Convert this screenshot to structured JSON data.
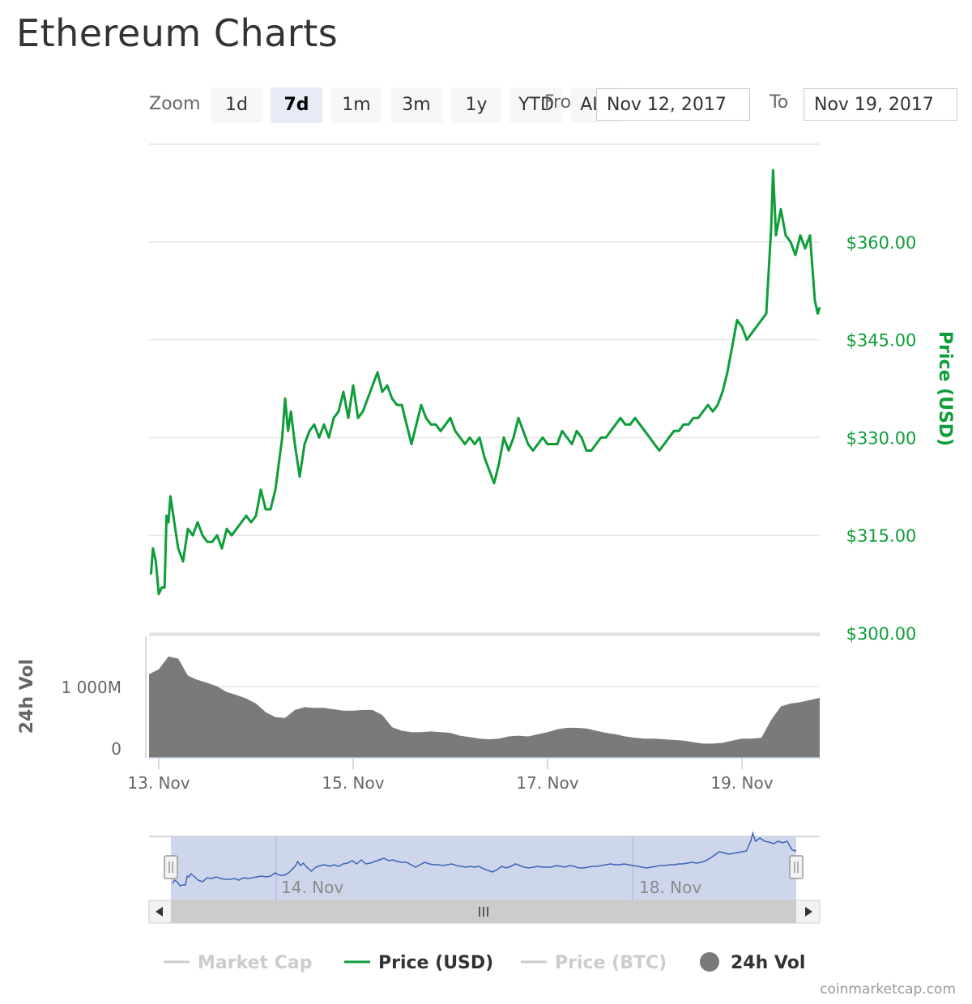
{
  "page": {
    "title": "Ethereum Charts"
  },
  "toolbar": {
    "zoom_label": "Zoom",
    "zoom_buttons": [
      {
        "label": "1d"
      },
      {
        "label": "7d",
        "active": true
      },
      {
        "label": "1m"
      },
      {
        "label": "3m"
      },
      {
        "label": "1y"
      },
      {
        "label": "YTD"
      },
      {
        "label": "ALL"
      }
    ],
    "from_label": "From",
    "to_label": "To",
    "from_value": "Nov 12, 2017",
    "to_value": "Nov 19, 2017"
  },
  "chart_data": {
    "type": "line",
    "title": "Ethereum Charts",
    "x": [
      "Nov 12, 2017",
      "Nov 19, 2017"
    ],
    "price_axis": {
      "label": "Price (USD)",
      "ylim": [
        300,
        375
      ],
      "ticks": [
        300,
        315,
        330,
        345,
        360
      ],
      "tick_labels": [
        "$300.00",
        "$315.00",
        "$330.00",
        "$345.00",
        "$360.00"
      ]
    },
    "volume_axis": {
      "label": "24h Vol",
      "ticks": [
        0,
        1000
      ],
      "tick_labels": [
        "0",
        "1 000M"
      ]
    },
    "x_axis": {
      "range_days": [
        12.9,
        19.8
      ],
      "ticks": [
        13,
        15,
        17,
        19
      ],
      "tick_labels": [
        "13. Nov",
        "15. Nov",
        "17. Nov",
        "19. Nov"
      ]
    },
    "navigator": {
      "tick_labels": [
        "14. Nov",
        "18. Nov"
      ]
    },
    "series": [
      {
        "name": "Price (USD)",
        "type": "line",
        "color": "#0f9d3a",
        "points": [
          [
            12.92,
            309
          ],
          [
            12.94,
            313
          ],
          [
            12.97,
            311
          ],
          [
            13.0,
            306
          ],
          [
            13.03,
            307
          ],
          [
            13.06,
            307
          ],
          [
            13.08,
            318
          ],
          [
            13.1,
            317
          ],
          [
            13.12,
            321
          ],
          [
            13.15,
            318
          ],
          [
            13.2,
            313
          ],
          [
            13.25,
            311
          ],
          [
            13.3,
            316
          ],
          [
            13.35,
            315
          ],
          [
            13.4,
            317
          ],
          [
            13.45,
            315
          ],
          [
            13.5,
            314
          ],
          [
            13.55,
            314
          ],
          [
            13.6,
            315
          ],
          [
            13.65,
            313
          ],
          [
            13.7,
            316
          ],
          [
            13.75,
            315
          ],
          [
            13.8,
            316
          ],
          [
            13.85,
            317
          ],
          [
            13.9,
            318
          ],
          [
            13.95,
            317
          ],
          [
            14.0,
            318
          ],
          [
            14.05,
            322
          ],
          [
            14.1,
            319
          ],
          [
            14.15,
            319
          ],
          [
            14.2,
            322
          ],
          [
            14.27,
            330
          ],
          [
            14.3,
            336
          ],
          [
            14.33,
            331
          ],
          [
            14.36,
            334
          ],
          [
            14.4,
            329
          ],
          [
            14.45,
            324
          ],
          [
            14.5,
            329
          ],
          [
            14.55,
            331
          ],
          [
            14.6,
            332
          ],
          [
            14.65,
            330
          ],
          [
            14.7,
            332
          ],
          [
            14.75,
            330
          ],
          [
            14.8,
            333
          ],
          [
            14.85,
            334
          ],
          [
            14.9,
            337
          ],
          [
            14.95,
            333
          ],
          [
            15.0,
            338
          ],
          [
            15.05,
            333
          ],
          [
            15.1,
            334
          ],
          [
            15.15,
            336
          ],
          [
            15.2,
            338
          ],
          [
            15.25,
            340
          ],
          [
            15.3,
            337
          ],
          [
            15.35,
            338
          ],
          [
            15.4,
            336
          ],
          [
            15.45,
            335
          ],
          [
            15.5,
            335
          ],
          [
            15.55,
            332
          ],
          [
            15.6,
            329
          ],
          [
            15.65,
            332
          ],
          [
            15.7,
            335
          ],
          [
            15.75,
            333
          ],
          [
            15.8,
            332
          ],
          [
            15.85,
            332
          ],
          [
            15.9,
            331
          ],
          [
            15.95,
            332
          ],
          [
            16.0,
            333
          ],
          [
            16.05,
            331
          ],
          [
            16.1,
            330
          ],
          [
            16.15,
            329
          ],
          [
            16.2,
            330
          ],
          [
            16.25,
            329
          ],
          [
            16.3,
            330
          ],
          [
            16.35,
            327
          ],
          [
            16.4,
            325
          ],
          [
            16.45,
            323
          ],
          [
            16.5,
            326
          ],
          [
            16.55,
            330
          ],
          [
            16.6,
            328
          ],
          [
            16.65,
            330
          ],
          [
            16.7,
            333
          ],
          [
            16.75,
            331
          ],
          [
            16.8,
            329
          ],
          [
            16.85,
            328
          ],
          [
            16.9,
            329
          ],
          [
            16.95,
            330
          ],
          [
            17.0,
            329
          ],
          [
            17.05,
            329
          ],
          [
            17.1,
            329
          ],
          [
            17.15,
            331
          ],
          [
            17.2,
            330
          ],
          [
            17.25,
            329
          ],
          [
            17.3,
            331
          ],
          [
            17.35,
            330
          ],
          [
            17.4,
            328
          ],
          [
            17.45,
            328
          ],
          [
            17.5,
            329
          ],
          [
            17.55,
            330
          ],
          [
            17.6,
            330
          ],
          [
            17.65,
            331
          ],
          [
            17.7,
            332
          ],
          [
            17.75,
            333
          ],
          [
            17.8,
            332
          ],
          [
            17.85,
            332
          ],
          [
            17.9,
            333
          ],
          [
            17.95,
            332
          ],
          [
            18.0,
            331
          ],
          [
            18.05,
            330
          ],
          [
            18.1,
            329
          ],
          [
            18.15,
            328
          ],
          [
            18.2,
            329
          ],
          [
            18.25,
            330
          ],
          [
            18.3,
            331
          ],
          [
            18.35,
            331
          ],
          [
            18.4,
            332
          ],
          [
            18.45,
            332
          ],
          [
            18.5,
            333
          ],
          [
            18.55,
            333
          ],
          [
            18.6,
            334
          ],
          [
            18.65,
            335
          ],
          [
            18.7,
            334
          ],
          [
            18.75,
            335
          ],
          [
            18.8,
            337
          ],
          [
            18.85,
            340
          ],
          [
            18.9,
            344
          ],
          [
            18.95,
            348
          ],
          [
            19.0,
            347
          ],
          [
            19.05,
            345
          ],
          [
            19.1,
            346
          ],
          [
            19.15,
            347
          ],
          [
            19.2,
            348
          ],
          [
            19.25,
            349
          ],
          [
            19.3,
            362
          ],
          [
            19.32,
            371
          ],
          [
            19.35,
            361
          ],
          [
            19.4,
            365
          ],
          [
            19.45,
            361
          ],
          [
            19.5,
            360
          ],
          [
            19.55,
            358
          ],
          [
            19.6,
            361
          ],
          [
            19.65,
            359
          ],
          [
            19.7,
            361
          ],
          [
            19.75,
            351
          ],
          [
            19.78,
            349
          ],
          [
            19.8,
            350
          ]
        ]
      },
      {
        "name": "24h Vol",
        "type": "area",
        "color": "#7a7a7a",
        "points": [
          [
            12.9,
            1170
          ],
          [
            13.0,
            1240
          ],
          [
            13.1,
            1420
          ],
          [
            13.2,
            1390
          ],
          [
            13.3,
            1150
          ],
          [
            13.4,
            1090
          ],
          [
            13.5,
            1050
          ],
          [
            13.6,
            1000
          ],
          [
            13.7,
            920
          ],
          [
            13.8,
            880
          ],
          [
            13.9,
            830
          ],
          [
            14.0,
            760
          ],
          [
            14.1,
            640
          ],
          [
            14.2,
            570
          ],
          [
            14.3,
            560
          ],
          [
            14.4,
            670
          ],
          [
            14.5,
            710
          ],
          [
            14.6,
            700
          ],
          [
            14.7,
            700
          ],
          [
            14.8,
            680
          ],
          [
            14.9,
            660
          ],
          [
            15.0,
            660
          ],
          [
            15.1,
            670
          ],
          [
            15.2,
            670
          ],
          [
            15.3,
            600
          ],
          [
            15.4,
            430
          ],
          [
            15.5,
            380
          ],
          [
            15.6,
            360
          ],
          [
            15.7,
            360
          ],
          [
            15.8,
            370
          ],
          [
            15.9,
            360
          ],
          [
            16.0,
            350
          ],
          [
            16.1,
            310
          ],
          [
            16.2,
            290
          ],
          [
            16.3,
            270
          ],
          [
            16.4,
            260
          ],
          [
            16.5,
            270
          ],
          [
            16.6,
            300
          ],
          [
            16.7,
            310
          ],
          [
            16.8,
            300
          ],
          [
            16.9,
            330
          ],
          [
            17.0,
            360
          ],
          [
            17.1,
            400
          ],
          [
            17.2,
            420
          ],
          [
            17.3,
            420
          ],
          [
            17.4,
            410
          ],
          [
            17.5,
            380
          ],
          [
            17.6,
            350
          ],
          [
            17.7,
            330
          ],
          [
            17.8,
            300
          ],
          [
            17.9,
            280
          ],
          [
            18.0,
            270
          ],
          [
            18.1,
            270
          ],
          [
            18.2,
            260
          ],
          [
            18.3,
            250
          ],
          [
            18.4,
            240
          ],
          [
            18.5,
            220
          ],
          [
            18.6,
            200
          ],
          [
            18.7,
            200
          ],
          [
            18.8,
            210
          ],
          [
            18.9,
            240
          ],
          [
            19.0,
            270
          ],
          [
            19.1,
            270
          ],
          [
            19.2,
            280
          ],
          [
            19.3,
            530
          ],
          [
            19.4,
            720
          ],
          [
            19.5,
            760
          ],
          [
            19.6,
            780
          ],
          [
            19.7,
            810
          ],
          [
            19.8,
            840
          ]
        ]
      }
    ],
    "legend": {
      "placement": "bottom",
      "items": [
        {
          "name": "Market Cap",
          "color": "#cccccc",
          "enabled": false,
          "symbol": "line"
        },
        {
          "name": "Price (USD)",
          "color": "#0f9d3a",
          "enabled": true,
          "symbol": "line"
        },
        {
          "name": "Price (BTC)",
          "color": "#cccccc",
          "enabled": false,
          "symbol": "line"
        },
        {
          "name": "24h Vol",
          "color": "#7a7a7a",
          "enabled": true,
          "symbol": "circle"
        }
      ]
    },
    "grid": true
  },
  "colors": {
    "price": "#0f9d3a",
    "volume": "#7a7a7a",
    "navigator_fill": "#cbd4ea",
    "navigator_line": "#3a65b8"
  },
  "footer": {
    "credit": "coinmarketcap.com"
  }
}
